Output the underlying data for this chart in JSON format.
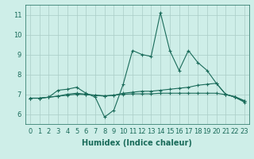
{
  "xlabel": "Humidex (Indice chaleur)",
  "ylabel": "",
  "bg_color": "#ceeee8",
  "grid_color": "#aaccc6",
  "line_color": "#1a6b5a",
  "xlim": [
    -0.5,
    23.5
  ],
  "ylim": [
    5.5,
    11.5
  ],
  "xticks": [
    0,
    1,
    2,
    3,
    4,
    5,
    6,
    7,
    8,
    9,
    10,
    11,
    12,
    13,
    14,
    15,
    16,
    17,
    18,
    19,
    20,
    21,
    22,
    23
  ],
  "yticks": [
    6,
    7,
    8,
    9,
    10,
    11
  ],
  "series1_x": [
    0,
    1,
    2,
    3,
    4,
    5,
    6,
    7,
    8,
    9,
    10,
    11,
    12,
    13,
    14,
    15,
    16,
    17,
    18,
    19,
    20,
    21,
    22,
    23
  ],
  "series1_y": [
    6.8,
    6.8,
    6.85,
    7.2,
    7.25,
    7.35,
    7.05,
    6.85,
    5.85,
    6.2,
    7.5,
    9.2,
    9.0,
    8.9,
    11.1,
    9.2,
    8.2,
    9.2,
    8.6,
    8.2,
    7.55,
    7.0,
    6.85,
    6.6
  ],
  "series2_x": [
    0,
    1,
    2,
    3,
    4,
    5,
    6,
    7,
    8,
    9,
    10,
    11,
    12,
    13,
    14,
    15,
    16,
    17,
    18,
    19,
    20,
    21,
    22,
    23
  ],
  "series2_y": [
    6.8,
    6.8,
    6.85,
    6.9,
    7.0,
    7.05,
    7.0,
    6.95,
    6.9,
    6.95,
    7.05,
    7.1,
    7.15,
    7.15,
    7.2,
    7.25,
    7.3,
    7.35,
    7.45,
    7.5,
    7.55,
    7.0,
    6.85,
    6.65
  ],
  "series3_x": [
    0,
    1,
    2,
    3,
    4,
    5,
    6,
    7,
    8,
    9,
    10,
    11,
    12,
    13,
    14,
    15,
    16,
    17,
    18,
    19,
    20,
    21,
    22,
    23
  ],
  "series3_y": [
    6.8,
    6.8,
    6.85,
    6.9,
    6.95,
    7.0,
    6.98,
    6.95,
    6.92,
    6.95,
    7.0,
    7.02,
    7.02,
    7.02,
    7.05,
    7.05,
    7.05,
    7.05,
    7.05,
    7.05,
    7.05,
    6.98,
    6.88,
    6.68
  ],
  "tick_fontsize": 6,
  "xlabel_fontsize": 7,
  "lw": 0.8,
  "ms": 2.5,
  "mew": 0.8
}
